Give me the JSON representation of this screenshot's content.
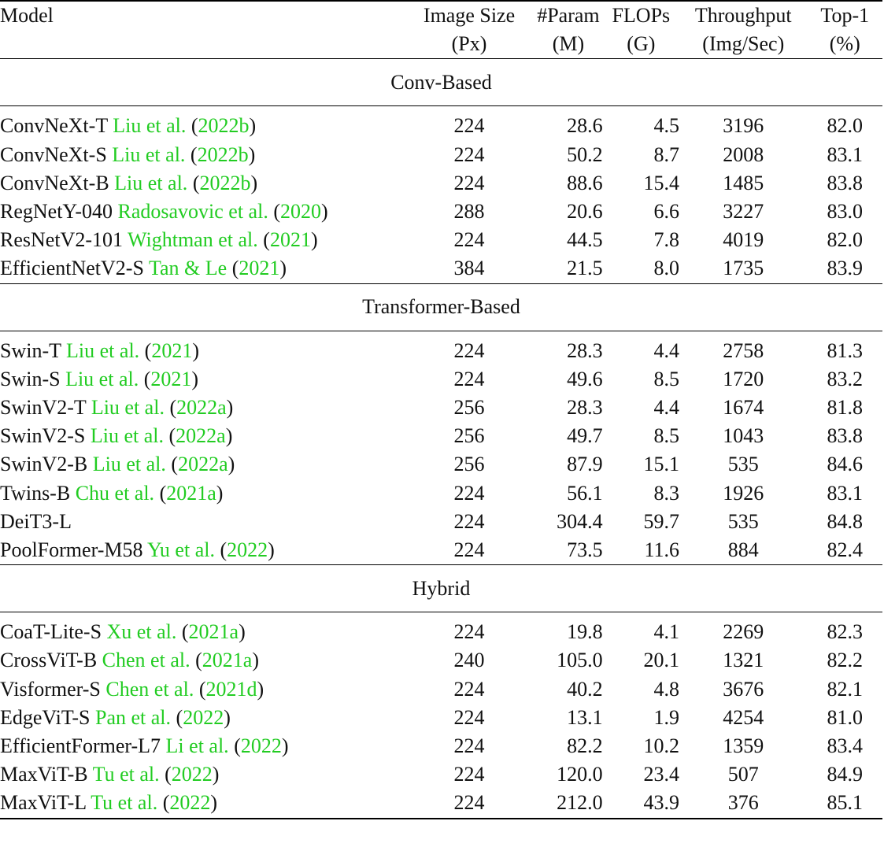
{
  "header": {
    "model": "Model",
    "size": [
      "Image Size",
      "(Px)"
    ],
    "param": [
      "#Param",
      "(M)"
    ],
    "flops": [
      "FLOPs",
      "(G)"
    ],
    "throughput": [
      "Throughput",
      "(Img/Sec)"
    ],
    "top1": [
      "Top-1",
      "(%)"
    ]
  },
  "sections": [
    {
      "title": "Conv-Based",
      "rows": [
        {
          "model": "ConvNeXt-T",
          "cite": "Liu et al.",
          "year": "2022b",
          "size": "224",
          "param": "28.6",
          "flops": "4.5",
          "throughput": "3196",
          "top1": "82.0"
        },
        {
          "model": "ConvNeXt-S",
          "cite": "Liu et al.",
          "year": "2022b",
          "size": "224",
          "param": "50.2",
          "flops": "8.7",
          "throughput": "2008",
          "top1": "83.1"
        },
        {
          "model": "ConvNeXt-B",
          "cite": "Liu et al.",
          "year": "2022b",
          "size": "224",
          "param": "88.6",
          "flops": "15.4",
          "throughput": "1485",
          "top1": "83.8"
        },
        {
          "model": "RegNetY-040",
          "cite": "Radosavovic et al.",
          "year": "2020",
          "size": "288",
          "param": "20.6",
          "flops": "6.6",
          "throughput": "3227",
          "top1": "83.0"
        },
        {
          "model": "ResNetV2-101",
          "cite": "Wightman et al.",
          "year": "2021",
          "size": "224",
          "param": "44.5",
          "flops": "7.8",
          "throughput": "4019",
          "top1": "82.0"
        },
        {
          "model": "EfficientNetV2-S",
          "cite": "Tan & Le",
          "year": "2021",
          "size": "384",
          "param": "21.5",
          "flops": "8.0",
          "throughput": "1735",
          "top1": "83.9"
        }
      ]
    },
    {
      "title": "Transformer-Based",
      "rows": [
        {
          "model": "Swin-T",
          "cite": "Liu et al.",
          "year": "2021",
          "size": "224",
          "param": "28.3",
          "flops": "4.4",
          "throughput": "2758",
          "top1": "81.3"
        },
        {
          "model": "Swin-S",
          "cite": "Liu et al.",
          "year": "2021",
          "size": "224",
          "param": "49.6",
          "flops": "8.5",
          "throughput": "1720",
          "top1": "83.2"
        },
        {
          "model": "SwinV2-T",
          "cite": "Liu et al.",
          "year": "2022a",
          "size": "256",
          "param": "28.3",
          "flops": "4.4",
          "throughput": "1674",
          "top1": "81.8"
        },
        {
          "model": "SwinV2-S",
          "cite": "Liu et al.",
          "year": "2022a",
          "size": "256",
          "param": "49.7",
          "flops": "8.5",
          "throughput": "1043",
          "top1": "83.8"
        },
        {
          "model": "SwinV2-B",
          "cite": "Liu et al.",
          "year": "2022a",
          "size": "256",
          "param": "87.9",
          "flops": "15.1",
          "throughput": "535",
          "top1": "84.6"
        },
        {
          "model": "Twins-B",
          "cite": "Chu et al.",
          "year": "2021a",
          "size": "224",
          "param": "56.1",
          "flops": "8.3",
          "throughput": "1926",
          "top1": "83.1"
        },
        {
          "model": "DeiT3-L",
          "cite": "",
          "year": "",
          "size": "224",
          "param": "304.4",
          "flops": "59.7",
          "throughput": "535",
          "top1": "84.8"
        },
        {
          "model": "PoolFormer-M58",
          "cite": "Yu et al.",
          "year": "2022",
          "size": "224",
          "param": "73.5",
          "flops": "11.6",
          "throughput": "884",
          "top1": "82.4"
        }
      ]
    },
    {
      "title": "Hybrid",
      "rows": [
        {
          "model": "CoaT-Lite-S",
          "cite": "Xu et al.",
          "year": "2021a",
          "size": "224",
          "param": "19.8",
          "flops": "4.1",
          "throughput": "2269",
          "top1": "82.3"
        },
        {
          "model": "CrossViT-B",
          "cite": "Chen et al.",
          "year": "2021a",
          "size": "240",
          "param": "105.0",
          "flops": "20.1",
          "throughput": "1321",
          "top1": "82.2"
        },
        {
          "model": "Visformer-S",
          "cite": "Chen et al.",
          "year": "2021d",
          "size": "224",
          "param": "40.2",
          "flops": "4.8",
          "throughput": "3676",
          "top1": "82.1"
        },
        {
          "model": "EdgeViT-S",
          "cite": "Pan et al.",
          "year": "2022",
          "size": "224",
          "param": "13.1",
          "flops": "1.9",
          "throughput": "4254",
          "top1": "81.0"
        },
        {
          "model": "EfficientFormer-L7",
          "cite": "Li et al.",
          "year": "2022",
          "size": "224",
          "param": "82.2",
          "flops": "10.2",
          "throughput": "1359",
          "top1": "83.4"
        },
        {
          "model": "MaxViT-B",
          "cite": "Tu et al.",
          "year": "2022",
          "size": "224",
          "param": "120.0",
          "flops": "23.4",
          "throughput": "507",
          "top1": "84.9"
        },
        {
          "model": "MaxViT-L",
          "cite": "Tu et al.",
          "year": "2022",
          "size": "224",
          "param": "212.0",
          "flops": "43.9",
          "throughput": "376",
          "top1": "85.1"
        }
      ]
    }
  ]
}
